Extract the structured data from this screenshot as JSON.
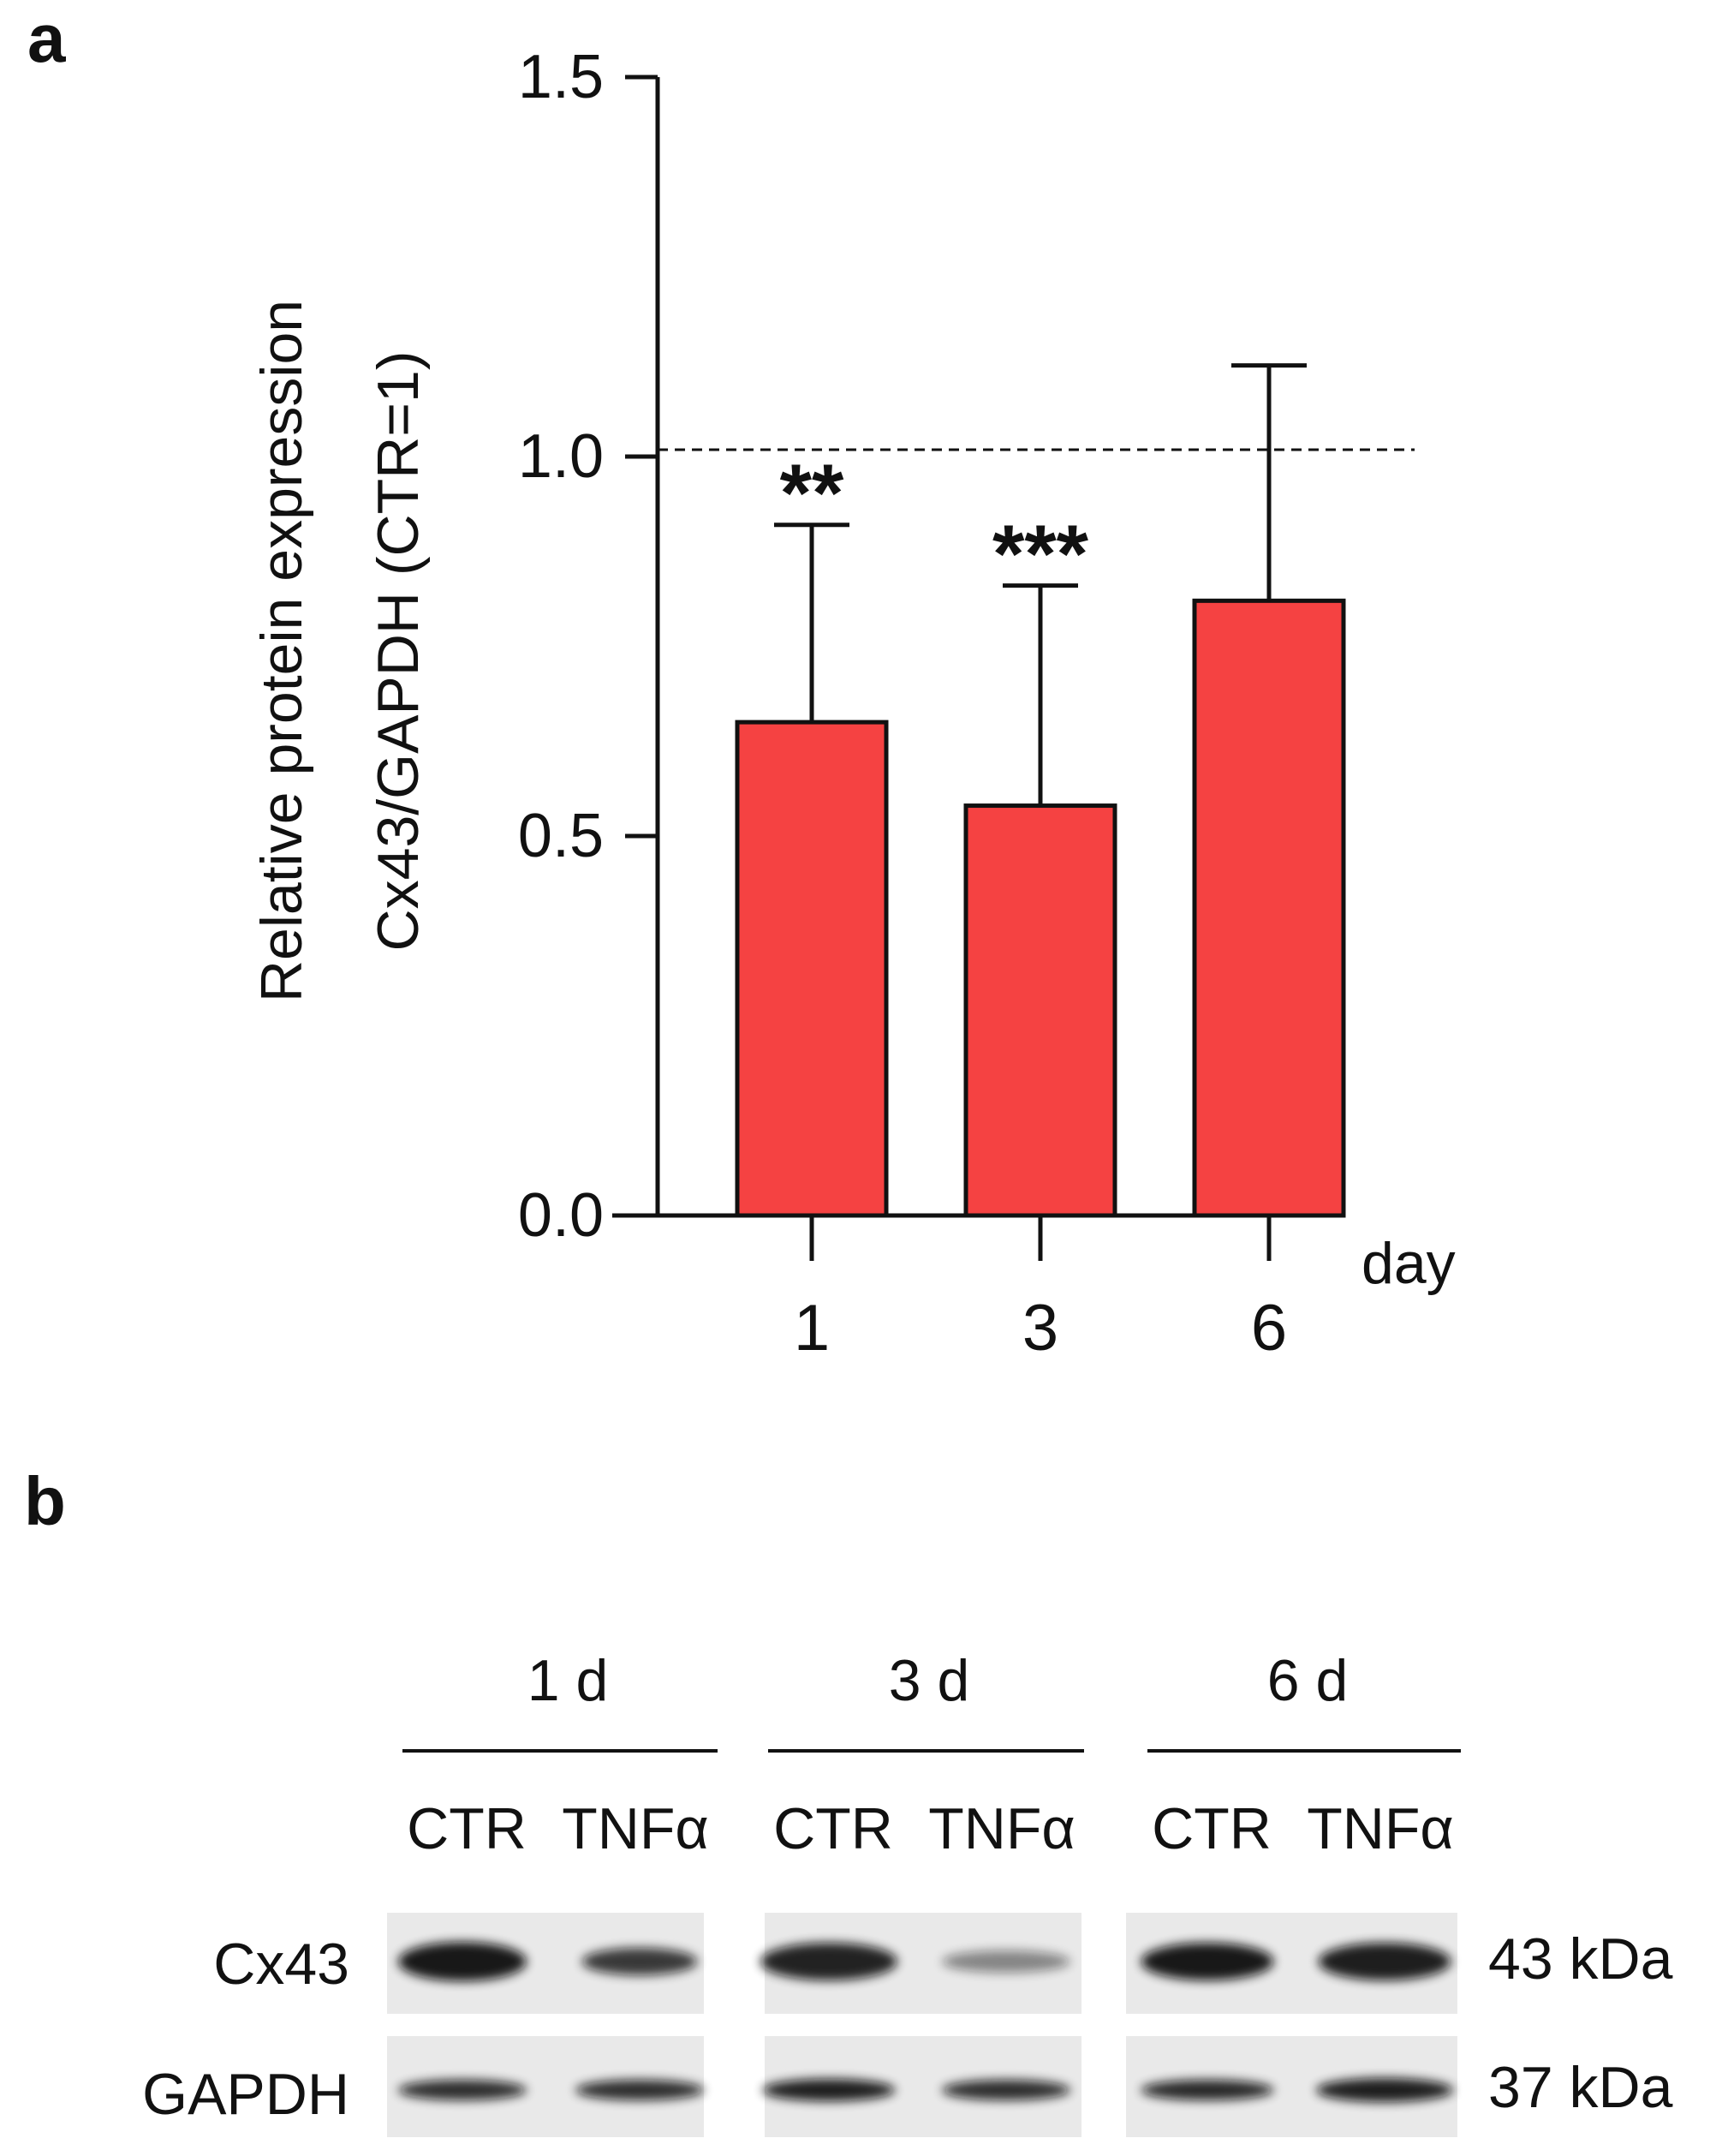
{
  "panels": {
    "a": {
      "letter": "a"
    },
    "b": {
      "letter": "b"
    }
  },
  "chart_data": {
    "type": "bar",
    "title": "",
    "ylabel_line1": "Relative protein expression",
    "ylabel_line2": "Cx43/GAPDH (CTR=1)",
    "xlabel": "day",
    "categories": [
      "1",
      "3",
      "6"
    ],
    "values": [
      0.65,
      0.54,
      0.81
    ],
    "error_upper": [
      0.91,
      0.83,
      1.12
    ],
    "significance": [
      "**",
      "***",
      ""
    ],
    "ylim": [
      0,
      1.5
    ],
    "yticks": [
      0.0,
      0.5,
      1.0,
      1.5
    ],
    "ytick_labels": [
      "0.0",
      "0.5",
      "1.0",
      "1.5"
    ],
    "reference_line": 1.0,
    "bar_color": "#f54242",
    "grid": false
  },
  "blot": {
    "groups": [
      {
        "label": "1 d",
        "lanes": [
          "CTR",
          "TNFα"
        ]
      },
      {
        "label": "3 d",
        "lanes": [
          "CTR",
          "TNFα"
        ]
      },
      {
        "label": "6 d",
        "lanes": [
          "CTR",
          "TNFα"
        ]
      }
    ],
    "rows": [
      {
        "protein": "Cx43",
        "size": "43 kDa"
      },
      {
        "protein": "GAPDH",
        "size": "37 kDa"
      }
    ]
  }
}
